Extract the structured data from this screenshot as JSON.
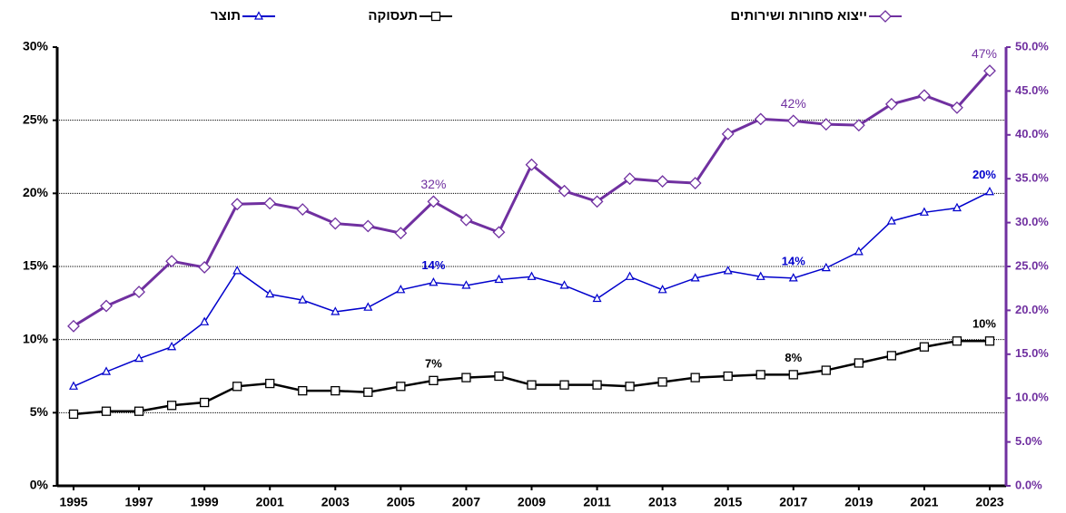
{
  "chart_data": {
    "type": "line",
    "x": [
      1995,
      1996,
      1997,
      1998,
      1999,
      2000,
      2001,
      2002,
      2003,
      2004,
      2005,
      2006,
      2007,
      2008,
      2009,
      2010,
      2011,
      2012,
      2013,
      2014,
      2015,
      2016,
      2017,
      2018,
      2019,
      2020,
      2021,
      2022,
      2023
    ],
    "xlim": [
      1994.5,
      2023.5
    ],
    "xticks": [
      1995,
      1997,
      1999,
      2001,
      2003,
      2005,
      2007,
      2009,
      2011,
      2013,
      2015,
      2017,
      2019,
      2021,
      2023
    ],
    "ylim": [
      0,
      30
    ],
    "yticks": [
      {
        "value": 0,
        "label": "0%"
      },
      {
        "value": 5,
        "label": "5%"
      },
      {
        "value": 10,
        "label": "10%"
      },
      {
        "value": 15,
        "label": "15%"
      },
      {
        "value": 20,
        "label": "20%"
      },
      {
        "value": 25,
        "label": "25%"
      },
      {
        "value": 30,
        "label": "30%"
      }
    ],
    "y2lim": [
      0,
      50
    ],
    "y2ticks": [
      {
        "value": 0,
        "label": "0.0%"
      },
      {
        "value": 5,
        "label": "5.0%"
      },
      {
        "value": 10,
        "label": "10.0%"
      },
      {
        "value": 15,
        "label": "15.0%"
      },
      {
        "value": 20,
        "label": "20.0%"
      },
      {
        "value": 25,
        "label": "25.0%"
      },
      {
        "value": 30,
        "label": "30.0%"
      },
      {
        "value": 35,
        "label": "35.0%"
      },
      {
        "value": 40,
        "label": "40.0%"
      },
      {
        "value": 45,
        "label": "45.0%"
      },
      {
        "value": 50,
        "label": "50.0%"
      }
    ],
    "grid": true,
    "series": [
      {
        "name": "ייצוא סחורות ושירותים",
        "color": "#7030a0",
        "marker": "diamond",
        "axis": "y2",
        "values": [
          18.2,
          20.5,
          22.1,
          25.6,
          24.9,
          32.1,
          32.2,
          31.5,
          29.9,
          29.6,
          28.8,
          32.4,
          30.3,
          28.9,
          36.6,
          33.6,
          32.4,
          35.0,
          34.7,
          34.5,
          40.1,
          41.8,
          41.6,
          41.2,
          41.1,
          43.5,
          44.5,
          43.1,
          47.3
        ],
        "value_labels": [
          null,
          null,
          null,
          null,
          null,
          null,
          null,
          null,
          null,
          null,
          null,
          "32%",
          null,
          null,
          null,
          null,
          null,
          null,
          null,
          null,
          null,
          null,
          "42%",
          null,
          null,
          null,
          null,
          null,
          "47%"
        ]
      },
      {
        "name": "תעסוקה",
        "color": "#000000",
        "marker": "square",
        "values": [
          4.9,
          5.1,
          5.1,
          5.5,
          5.7,
          6.8,
          7.0,
          6.5,
          6.5,
          6.4,
          6.8,
          7.2,
          7.4,
          7.5,
          6.9,
          6.9,
          6.9,
          6.8,
          7.1,
          7.4,
          7.5,
          7.6,
          7.6,
          7.9,
          8.4,
          8.9,
          9.5,
          9.9,
          9.9
        ],
        "value_labels": [
          null,
          null,
          null,
          null,
          null,
          null,
          null,
          null,
          null,
          null,
          null,
          "7%",
          null,
          null,
          null,
          null,
          null,
          null,
          null,
          null,
          null,
          null,
          "8%",
          null,
          null,
          null,
          null,
          null,
          "10%"
        ]
      },
      {
        "name": "תוצר",
        "color": "#0000cc",
        "marker": "triangle",
        "values": [
          6.8,
          7.8,
          8.7,
          9.5,
          11.2,
          14.7,
          13.1,
          12.7,
          11.9,
          12.2,
          13.4,
          13.9,
          13.7,
          14.1,
          14.3,
          13.7,
          12.8,
          14.3,
          13.4,
          14.2,
          14.7,
          14.3,
          14.2,
          14.9,
          16.0,
          18.1,
          18.7,
          19.0,
          20.1
        ],
        "value_labels": [
          null,
          null,
          null,
          null,
          null,
          null,
          null,
          null,
          null,
          null,
          null,
          "14%",
          null,
          null,
          null,
          null,
          null,
          null,
          null,
          null,
          null,
          null,
          "14%",
          null,
          null,
          null,
          null,
          null,
          "20%"
        ]
      }
    ]
  }
}
